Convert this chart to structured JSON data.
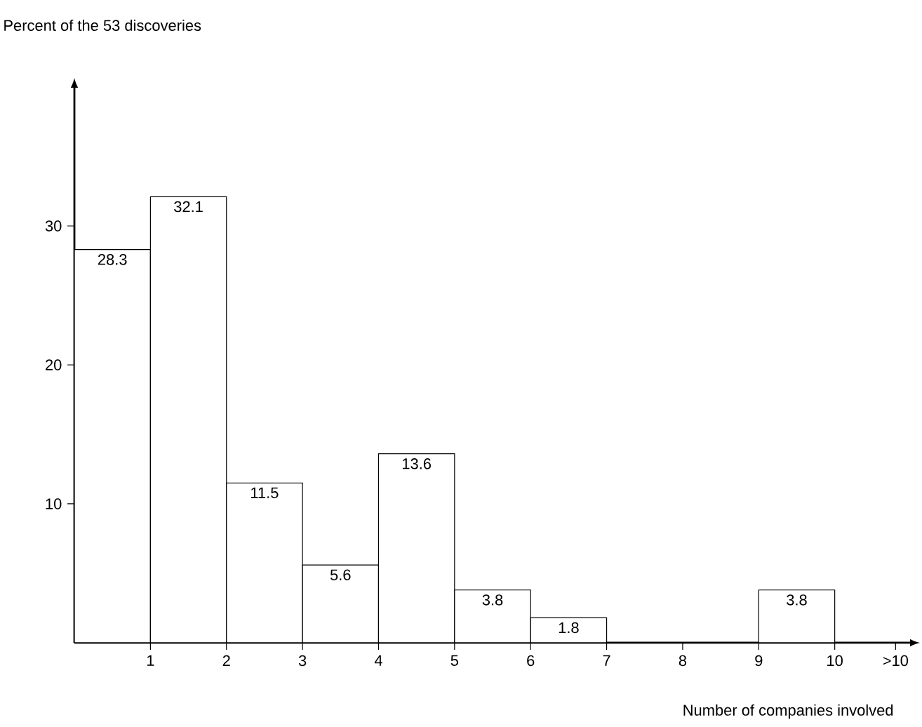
{
  "chart_data": {
    "type": "histogram",
    "ylabel": "Percent of the 53 discoveries",
    "xlabel": "Number of companies involved",
    "bins": [
      0,
      1,
      2,
      3,
      4,
      5,
      6,
      7,
      8,
      9,
      10
    ],
    "values": [
      28.3,
      32.1,
      11.5,
      5.6,
      13.6,
      3.8,
      1.8,
      0,
      0,
      3.8
    ],
    "value_labels": [
      "28.3",
      "32.1",
      "11.5",
      "5.6",
      "13.6",
      "3.8",
      "1.8",
      null,
      null,
      "3.8"
    ],
    "color": "#ffffff",
    "xlim": [
      0,
      11
    ],
    "ylim": [
      0,
      40
    ],
    "xticks": [
      1,
      2,
      3,
      4,
      5,
      6,
      7,
      8,
      9,
      10,
      {
        "value": 10.8,
        "label": ">10"
      }
    ],
    "yticks": [
      10,
      20,
      30
    ]
  }
}
